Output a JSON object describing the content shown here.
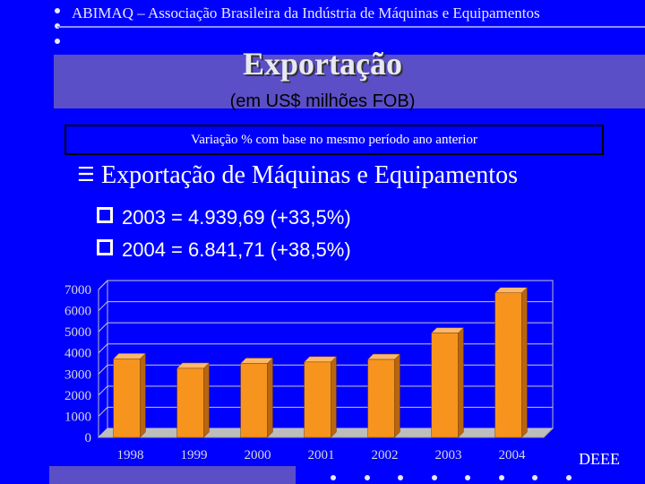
{
  "header": {
    "text": "ABIMAQ – Associação Brasileira da Indústria de Máquinas e Equipamentos"
  },
  "slide": {
    "title": "Exportação",
    "subtitle": "(em US$ milhões FOB)",
    "variation_note": "Variação % com base no mesmo período ano anterior",
    "bullet": "Exportação de Máquinas e Equipamentos",
    "sub_items": [
      "2003 =  4.939,69 (+33,5%)",
      "2004 =  6.841,71 (+38,5%)"
    ],
    "footer": "DEEE"
  },
  "colors": {
    "background": "#0000ff",
    "band": "#5b4fc7",
    "bar": "#f7941d"
  },
  "chart_data": {
    "type": "bar",
    "categories": [
      "1998",
      "1999",
      "2000",
      "2001",
      "2002",
      "2003",
      "2004"
    ],
    "values": [
      3720,
      3270,
      3500,
      3570,
      3690,
      4939.69,
      6841.71
    ],
    "ylim": [
      0,
      7000
    ],
    "yticks": [
      "0",
      "1000",
      "2000",
      "3000",
      "4000",
      "5000",
      "6000",
      "7000"
    ],
    "grid": true,
    "style": "3d"
  }
}
